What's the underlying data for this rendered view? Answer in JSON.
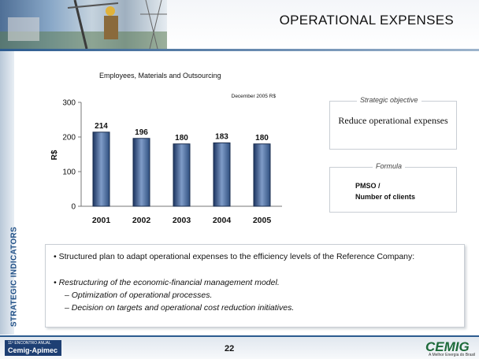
{
  "header": {
    "title": "OPERATIONAL EXPENSES"
  },
  "sidebar": {
    "label": "STRATEGIC INDICATORS"
  },
  "chart_data": {
    "type": "bar",
    "title": "Employees, Materials and Outsourcing",
    "note": "December 2005 R$",
    "ylabel": "R$",
    "xlabel": "",
    "categories": [
      "2001",
      "2002",
      "2003",
      "2004",
      "2005"
    ],
    "values": [
      214,
      196,
      180,
      183,
      180
    ],
    "ylim": [
      0,
      300
    ],
    "yticks": [
      0,
      100,
      200,
      300
    ],
    "grid": false,
    "bar_color": "#2f4f7f"
  },
  "strategic_objective": {
    "heading": "Strategic objective",
    "text": "Reduce operational expenses"
  },
  "formula": {
    "heading": "Formula",
    "line1": "PMSO /",
    "line2": "Number of clients"
  },
  "bullets": {
    "item1": "Structured plan to adapt operational expenses to the efficiency levels of the Reference Company:",
    "item2": "Restructuring of the economic-financial management model.",
    "sub1": "Optimization of operational processes.",
    "sub2": "Decision on targets and operational cost reduction initiatives."
  },
  "footer": {
    "page_number": "22",
    "event_small": "11º ENCONTRO ANUAL",
    "event_name": "Cemig-Apimec",
    "brand": "CEMIG",
    "brand_tagline": "A Melhor Energia do Brasil"
  }
}
